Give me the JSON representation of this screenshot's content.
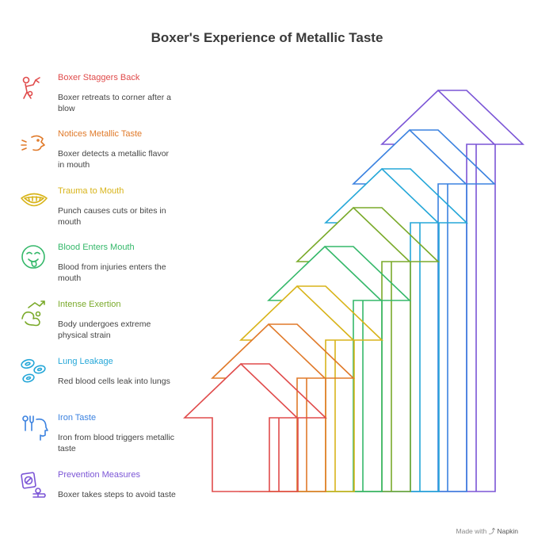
{
  "title": "Boxer's Experience of Metallic Taste",
  "steps": [
    {
      "heading": "Boxer Staggers Back",
      "description": "Boxer retreats to corner after a blow",
      "color": "#e04b4b",
      "icon": "boxer-staggering-icon"
    },
    {
      "heading": "Notices Metallic Taste",
      "description": "Boxer detects a metallic flavor in mouth",
      "color": "#e07a2a",
      "icon": "face-notice-icon"
    },
    {
      "heading": "Trauma to Mouth",
      "description": "Punch causes cuts or bites in mouth",
      "color": "#d8b41a",
      "icon": "mouth-teeth-icon"
    },
    {
      "heading": "Blood Enters Mouth",
      "description": "Blood from injuries enters the mouth",
      "color": "#35b86a",
      "icon": "face-tongue-icon"
    },
    {
      "heading": "Intense Exertion",
      "description": "Body undergoes extreme physical strain",
      "color": "#7aaa2a",
      "icon": "muscle-strain-icon"
    },
    {
      "heading": "Lung Leakage",
      "description": "Red blood cells leak into lungs",
      "color": "#25a7d8",
      "icon": "blood-cells-icon"
    },
    {
      "heading": "Iron Taste",
      "description": "Iron from blood triggers metallic taste",
      "color": "#3b82e0",
      "icon": "head-utensils-icon"
    },
    {
      "heading": "Prevention Measures",
      "description": "Boxer takes steps to avoid taste",
      "color": "#7b55d6",
      "icon": "prevention-sign-icon"
    }
  ],
  "footer": {
    "made_with": "Made with",
    "brand": "Napkin"
  }
}
